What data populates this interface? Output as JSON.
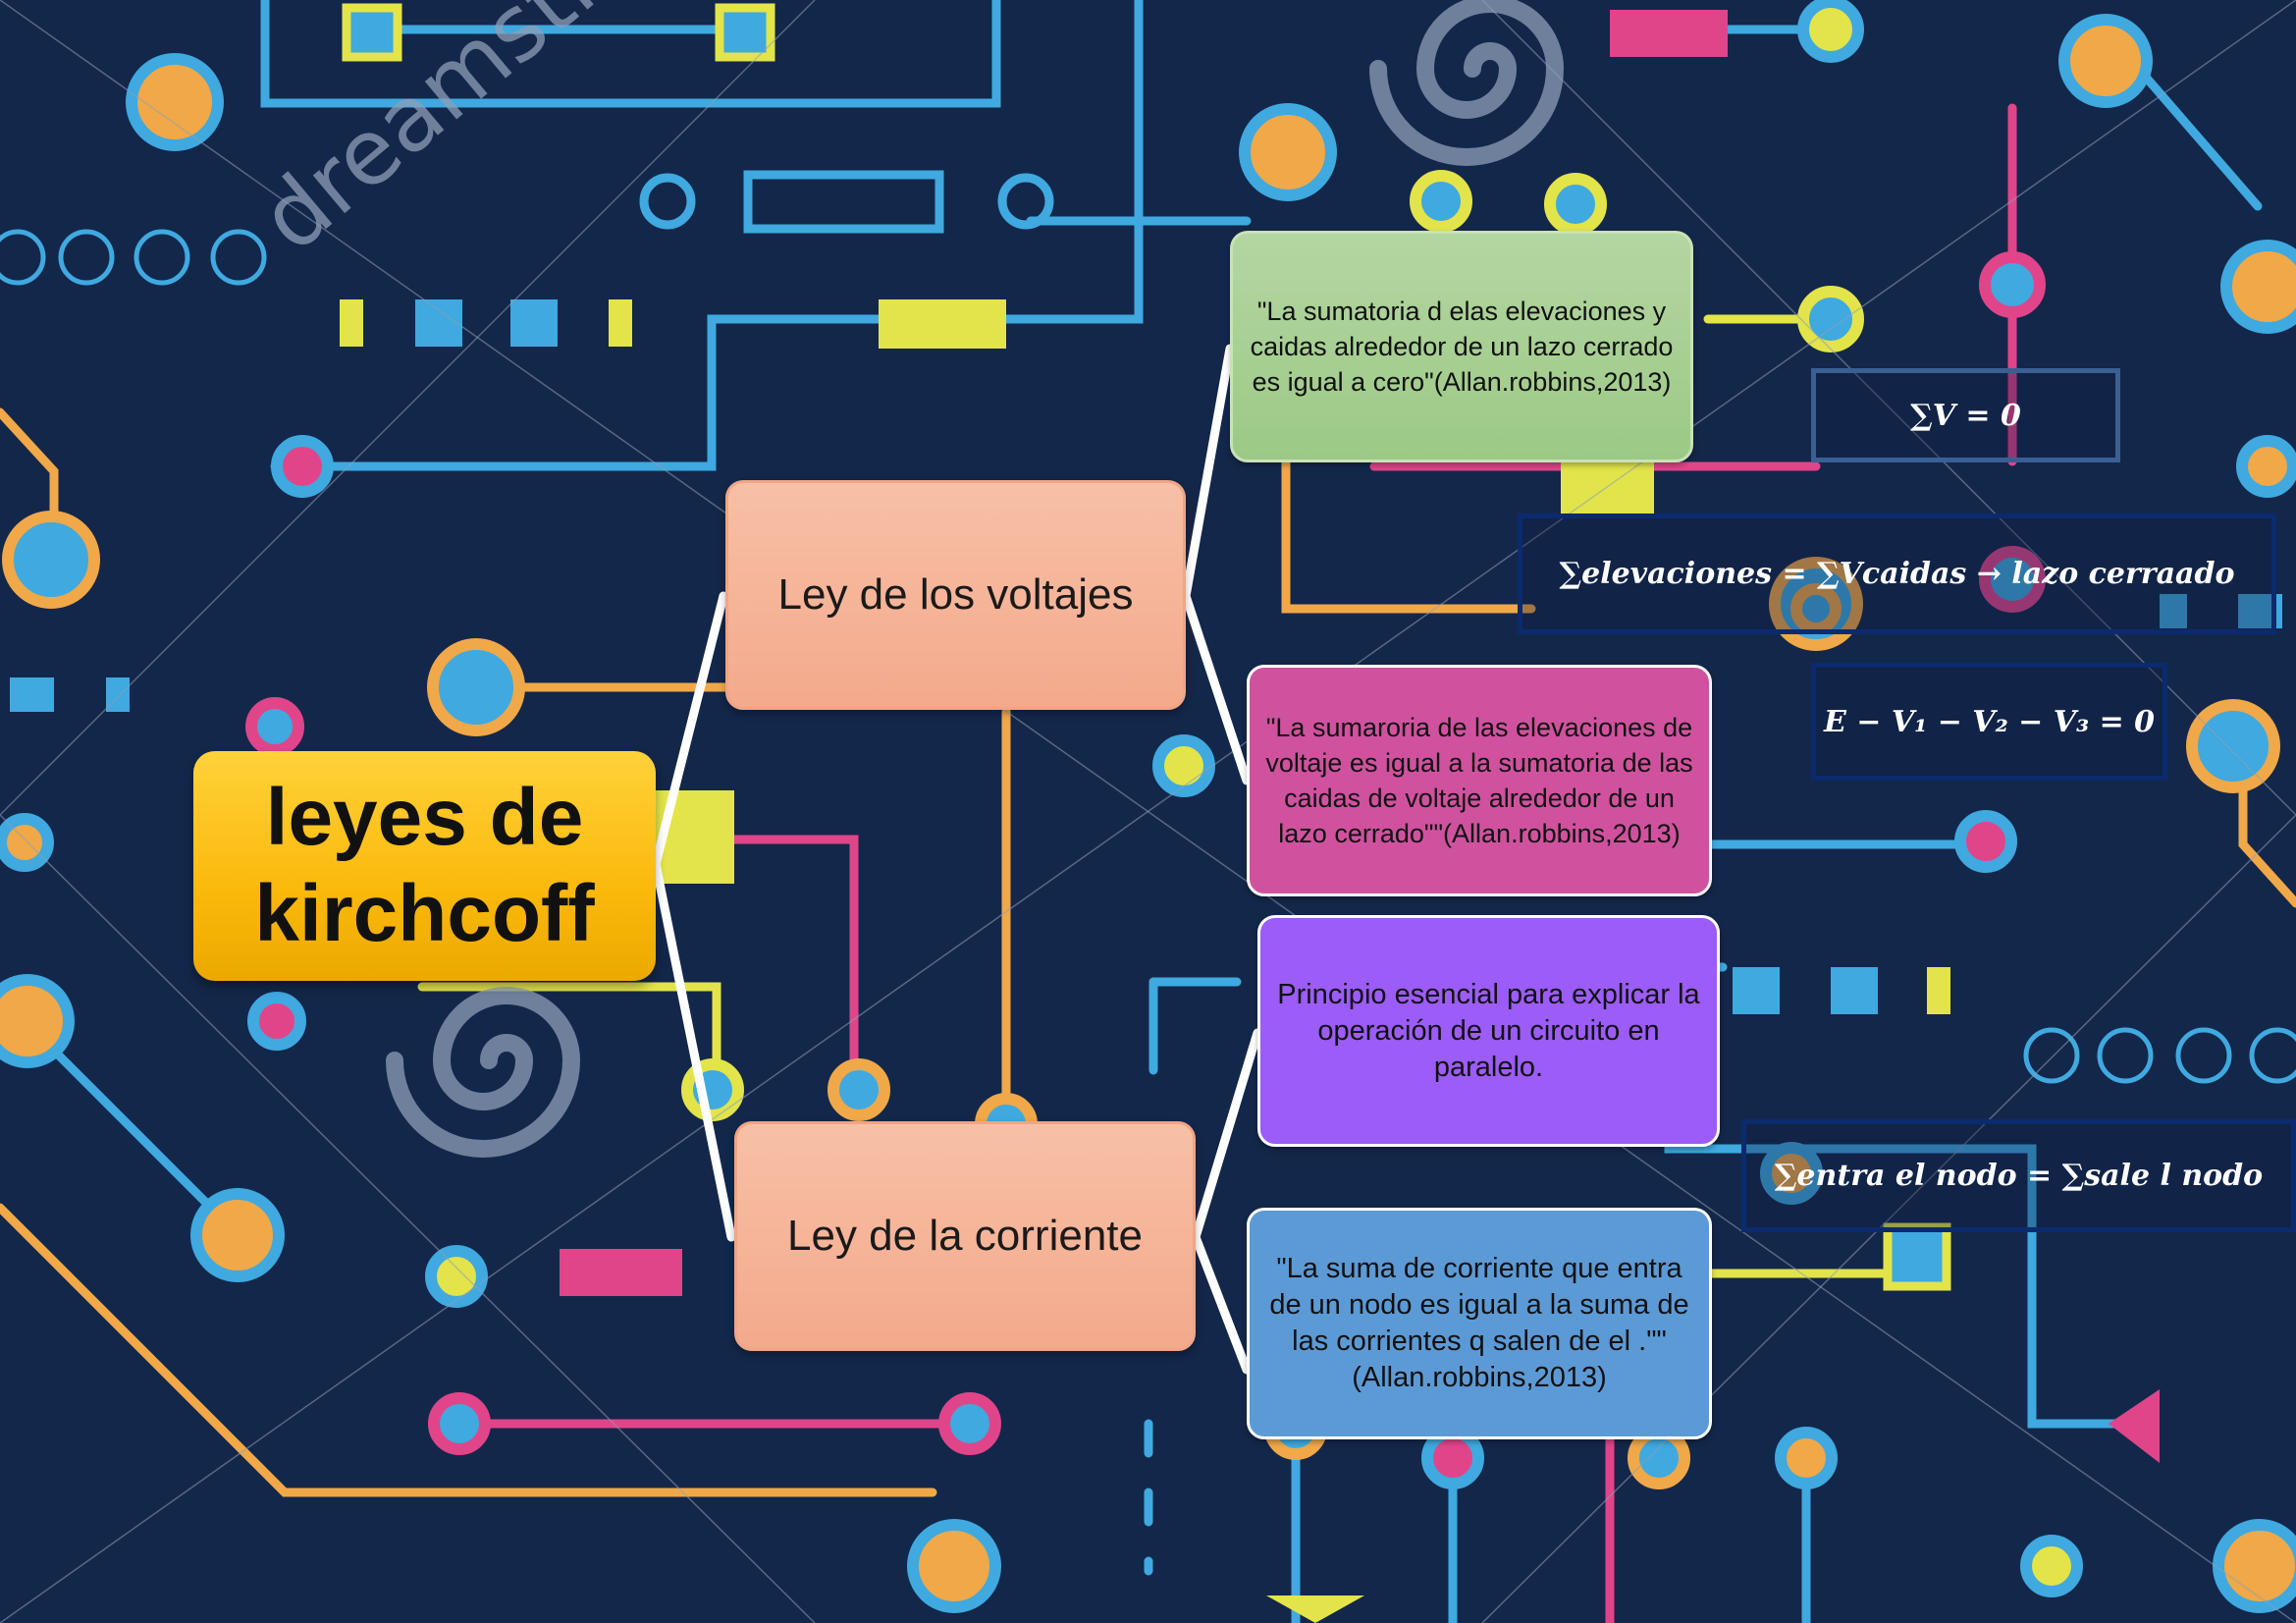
{
  "root": {
    "label_line1": "leyes de",
    "label_line2": "kirchcoff"
  },
  "branches": {
    "voltajes": {
      "label": "Ley de los voltajes"
    },
    "corriente": {
      "label": "Ley de la corriente"
    }
  },
  "leaves": {
    "voltajes_definition_1": "\"La sumatoria d elas elevaciones y caidas alrededor de un lazo cerrado es igual a cero\"(Allan.robbins,2013)",
    "voltajes_definition_2": "\"La sumaroria de las elevaciones de voltaje es igual a la sumatoria de las caidas  de voltaje alrededor de un lazo cerrado\"\"(Allan.robbins,2013)",
    "corriente_principle": "Principio esencial para explicar la operación de un circuito en paralelo.",
    "corriente_definition": "\"La suma de corriente que entra de un nodo es igual a la suma de las corrientes q salen de el .\"\"(Allan.robbins,2013)"
  },
  "formulas": {
    "sum_v_zero": "∑V = 0",
    "elevaciones_caidas": "∑elevaciones = ∑Vcaidas  → lazo cerraado",
    "kvl_example": "E − V₁ − V₂ − V₃ = 0",
    "nodo": "∑entra el nodo = ∑sale l nodo"
  },
  "colors": {
    "background": "#13274a",
    "root": "#fbb90c",
    "branch": "#f4a98c",
    "leaf_green": "#9cc986",
    "leaf_pink": "#d0529f",
    "leaf_purple": "#9b5cf8",
    "leaf_blue": "#5c9ad6",
    "trace_blue": "#3fa9e0",
    "trace_orange": "#f0a848",
    "trace_pink": "#e0458a",
    "trace_yellow": "#e2e44a",
    "watermark": "#8f9fb8"
  },
  "watermark": "dreamstime"
}
